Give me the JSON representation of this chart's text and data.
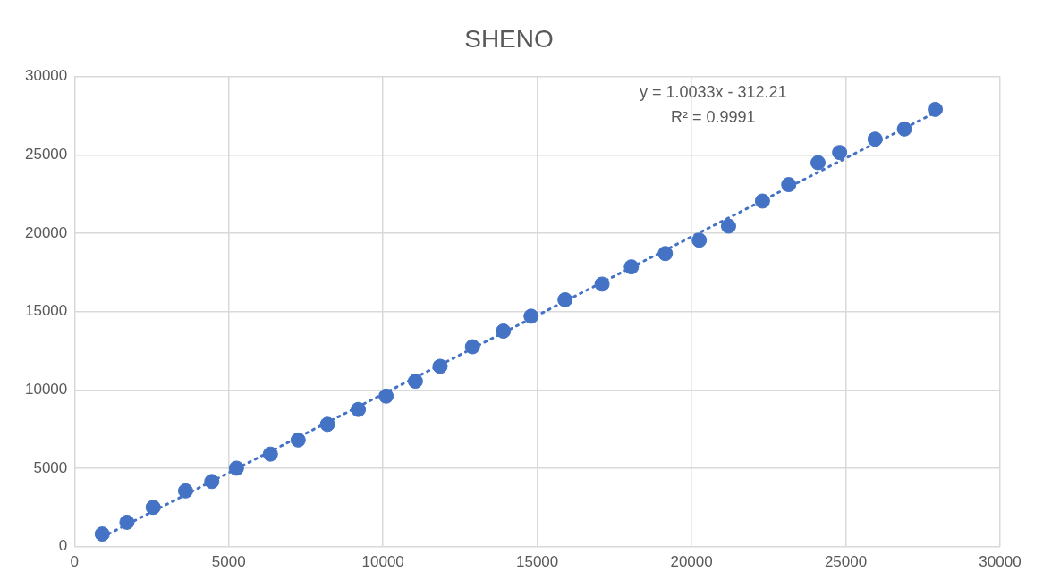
{
  "chart_data": {
    "type": "scatter",
    "title": "SHENO",
    "grid": true,
    "legend": false,
    "marker": "circle",
    "xlim": [
      0,
      30000
    ],
    "xticks": [
      0,
      5000,
      10000,
      15000,
      20000,
      25000,
      30000
    ],
    "ylim": [
      0,
      30000
    ],
    "yticks": [
      0,
      5000,
      10000,
      15000,
      20000,
      25000,
      30000
    ],
    "annotations": [
      "y = 1.0033x - 312.21",
      "R² = 0.9991"
    ],
    "series": [
      {
        "type": "scatter",
        "color": "#4472c4",
        "x": [
          900,
          1700,
          2550,
          3600,
          4450,
          5250,
          6350,
          7250,
          8200,
          9200,
          10100,
          11050,
          11850,
          12900,
          13900,
          14800,
          15900,
          17100,
          18050,
          19150,
          20250,
          21200,
          22300,
          23150,
          24100,
          24800,
          25950,
          26900,
          27900
        ],
        "values": [
          800,
          1550,
          2500,
          3550,
          4150,
          5000,
          5900,
          6800,
          7800,
          8750,
          9600,
          10550,
          11500,
          12750,
          13750,
          14700,
          15750,
          16750,
          17850,
          18700,
          19550,
          20450,
          22050,
          23100,
          24500,
          25150,
          26000,
          26650,
          27900
        ]
      },
      {
        "type": "line",
        "line_style": "dotted",
        "marker": "none",
        "color": "#4472c4",
        "x": [
          900,
          27900
        ],
        "values": [
          600,
          27700
        ]
      }
    ]
  }
}
